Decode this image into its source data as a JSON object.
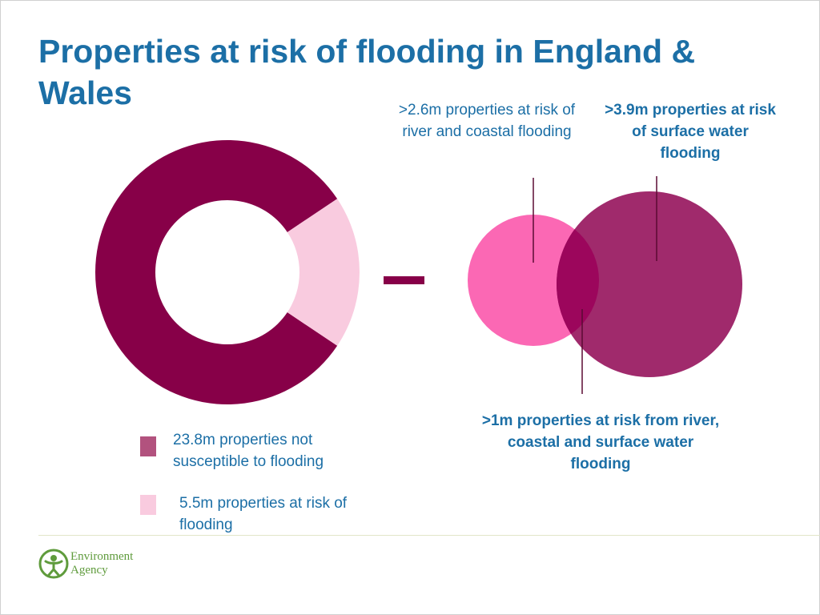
{
  "title": "Properties at risk of flooding in England & Wales",
  "chart_data": [
    {
      "type": "pie",
      "slices": [
        {
          "label": "23.8m properties not susceptible to flooding",
          "value": 23.8,
          "color": "#870048"
        },
        {
          "label": "5.5m properties at risk of flooding",
          "value": 5.5,
          "color": "#f9cbdf"
        }
      ]
    },
    {
      "type": "venn",
      "sets": [
        {
          "label": ">2.6m properties at risk of river and coastal flooding",
          "value": 2.6,
          "color": "#fb68b4"
        },
        {
          "label": ">3.9m properties at risk of surface water flooding",
          "value": 3.9,
          "color": "#a02a6c"
        }
      ],
      "intersection": {
        "label": ">1m properties at risk from river, coastal and surface water flooding",
        "value": 1,
        "color": "#9c065c"
      }
    }
  ],
  "legend": [
    {
      "text": "23.8m properties not susceptible to flooding",
      "color": "#b2527e"
    },
    {
      "text": "5.5m properties at risk of flooding",
      "color": "#f9cbdf"
    }
  ],
  "operator_color": "#870048",
  "logo": {
    "line1": "Environment",
    "line2": "Agency",
    "icon": "environment-agency-logo-icon",
    "color": "#5f9b3c"
  }
}
